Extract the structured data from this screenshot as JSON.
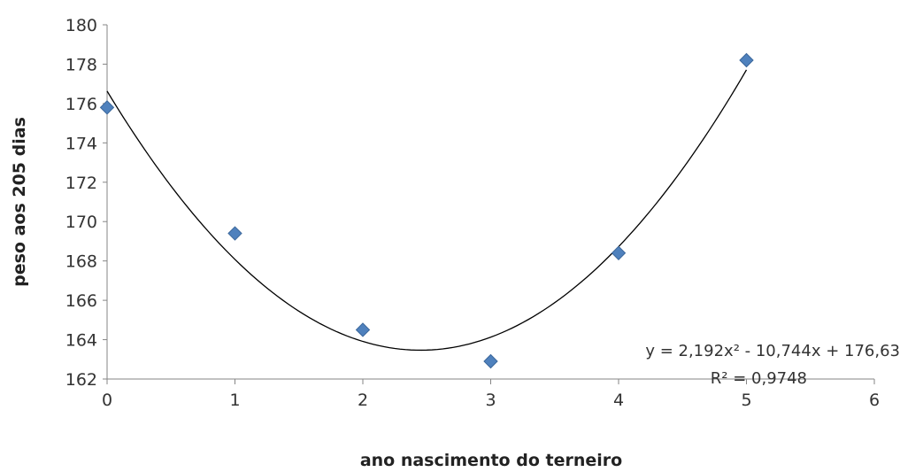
{
  "chart_data": {
    "type": "scatter",
    "xlabel": "ano nascimento do terneiro",
    "ylabel": "peso aos 205 dias",
    "xlim": [
      0,
      6
    ],
    "ylim": [
      162,
      180
    ],
    "x_ticks": [
      "0",
      "1",
      "2",
      "3",
      "4",
      "5",
      "6"
    ],
    "y_ticks": [
      "162",
      "164",
      "166",
      "168",
      "170",
      "172",
      "174",
      "176",
      "178",
      "180"
    ],
    "grid": false,
    "series": [
      {
        "x": [
          0,
          1,
          2,
          3,
          4,
          5
        ],
        "y": [
          175.8,
          169.4,
          164.5,
          162.9,
          168.4,
          178.2
        ],
        "color": "#4F81BD",
        "marker": "diamond"
      }
    ],
    "trendline": {
      "type": "polynomial",
      "coefficients": [
        2.192,
        -10.744,
        176.63
      ],
      "equation_label": "y = 2,192x² - 10,744x + 176,63",
      "r2_label": "R² = 0,9748",
      "color": "#000000"
    }
  }
}
